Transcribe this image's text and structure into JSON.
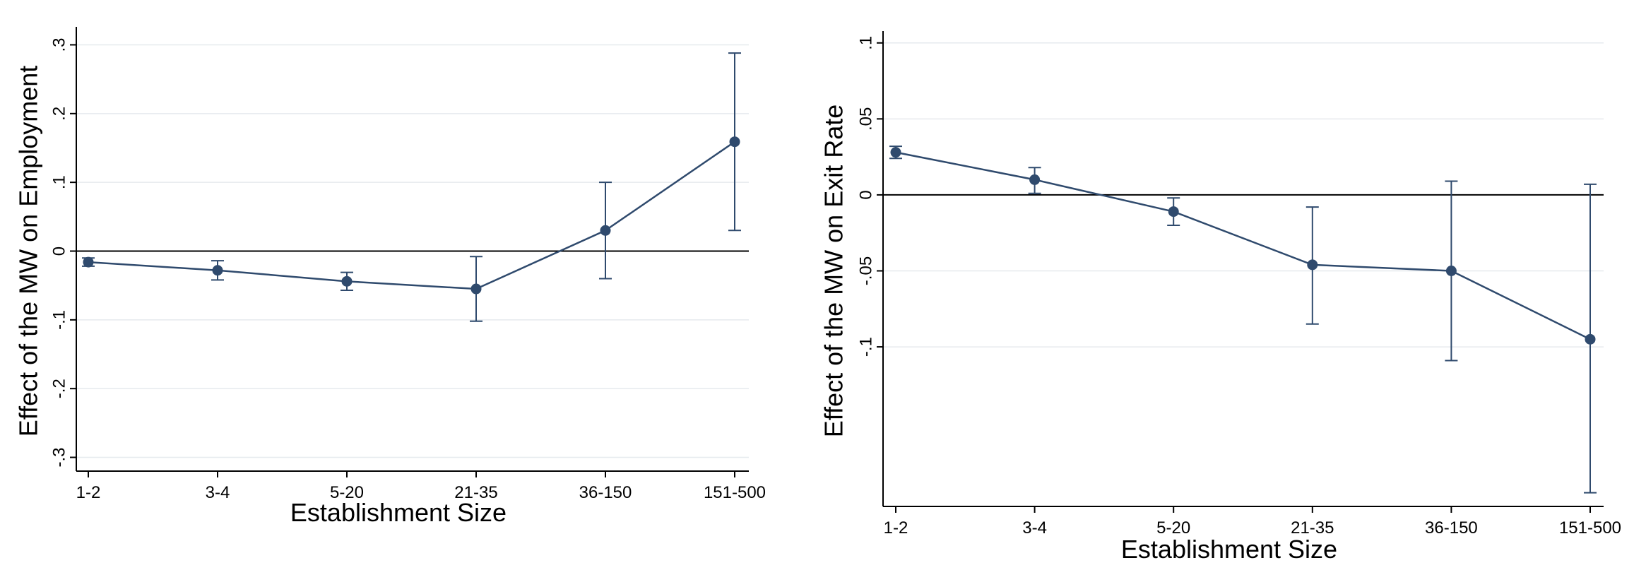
{
  "chart_data": [
    {
      "type": "line",
      "title": "",
      "xlabel": "Establishment Size",
      "ylabel": "Effect of the MW on Employment",
      "categories": [
        "1-2",
        "3-4",
        "5-20",
        "21-35",
        "36-150",
        "151-500"
      ],
      "ylim": [
        -0.32,
        0.32
      ],
      "yticks": [
        {
          "value": -0.3,
          "label": "-.3"
        },
        {
          "value": -0.2,
          "label": "-.2"
        },
        {
          "value": -0.1,
          "label": "-.1"
        },
        {
          "value": 0,
          "label": "0"
        },
        {
          "value": 0.1,
          "label": ".1"
        },
        {
          "value": 0.2,
          "label": ".2"
        },
        {
          "value": 0.3,
          "label": ".3"
        }
      ],
      "grid": true,
      "zero_line": true,
      "series": [
        {
          "values": [
            -0.016,
            -0.028,
            -0.044,
            -0.055,
            0.03,
            0.159
          ],
          "ci_low": [
            -0.022,
            -0.042,
            -0.057,
            -0.102,
            -0.04,
            0.03
          ],
          "ci_high": [
            -0.01,
            -0.014,
            -0.031,
            -0.008,
            0.1,
            0.288
          ]
        }
      ],
      "colors": {
        "series": "#2f4a6d",
        "axis": "#000000",
        "grid": "#e6eaee"
      }
    },
    {
      "type": "line",
      "title": "",
      "xlabel": "Establishment Size",
      "ylabel": "Effect of the MW on Exit Rate",
      "categories": [
        "1-2",
        "3-4",
        "5-20",
        "21-35",
        "36-150",
        "151-500"
      ],
      "ylim": [
        -0.205,
        0.105
      ],
      "yticks": [
        {
          "value": -0.1,
          "label": "-.1"
        },
        {
          "value": -0.05,
          "label": "-.05"
        },
        {
          "value": 0,
          "label": "0"
        },
        {
          "value": 0.05,
          "label": ".05"
        },
        {
          "value": 0.1,
          "label": ".1"
        }
      ],
      "grid": true,
      "zero_line": true,
      "series": [
        {
          "values": [
            0.028,
            0.01,
            -0.011,
            -0.046,
            -0.05,
            -0.095
          ],
          "ci_low": [
            0.024,
            0.001,
            -0.02,
            -0.085,
            -0.109,
            -0.196
          ],
          "ci_high": [
            0.032,
            0.018,
            -0.002,
            -0.008,
            0.009,
            0.007
          ]
        }
      ],
      "colors": {
        "series": "#2f4a6d",
        "axis": "#000000",
        "grid": "#e6eaee"
      }
    }
  ]
}
